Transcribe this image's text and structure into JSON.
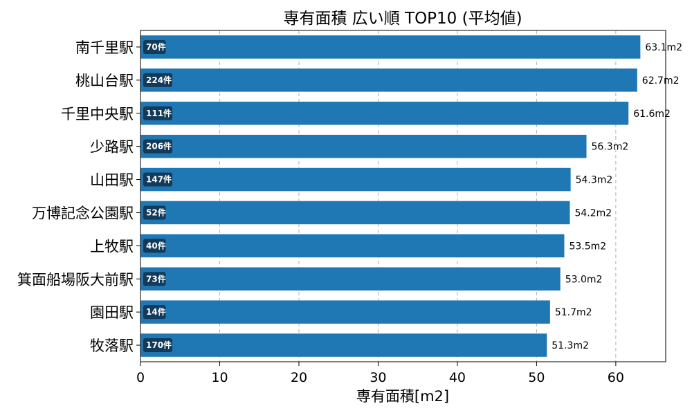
{
  "chart_data": {
    "type": "bar",
    "orientation": "horizontal",
    "title": "専有面積 広い順 TOP10 (平均値)",
    "xlabel": "専有面積[m2]",
    "ylabel": "",
    "xlim": [
      0,
      66.3
    ],
    "xticks": [
      0,
      10,
      20,
      30,
      40,
      50,
      60
    ],
    "grid": "vertical-dashed",
    "bar_color": "#1f77b4",
    "badge_color": "#123a5a",
    "categories": [
      "南千里駅",
      "桃山台駅",
      "千里中央駅",
      "少路駅",
      "山田駅",
      "万博記念公園駅",
      "上牧駅",
      "箕面船場阪大前駅",
      "園田駅",
      "牧落駅"
    ],
    "values": [
      63.1,
      62.7,
      61.6,
      56.3,
      54.3,
      54.2,
      53.5,
      53.0,
      51.7,
      51.3
    ],
    "value_labels": [
      "63.1m2",
      "62.7m2",
      "61.6m2",
      "56.3m2",
      "54.3m2",
      "54.2m2",
      "53.5m2",
      "53.0m2",
      "51.7m2",
      "51.3m2"
    ],
    "count_labels": [
      "70件",
      "224件",
      "111件",
      "206件",
      "147件",
      "52件",
      "40件",
      "73件",
      "14件",
      "170件"
    ]
  }
}
